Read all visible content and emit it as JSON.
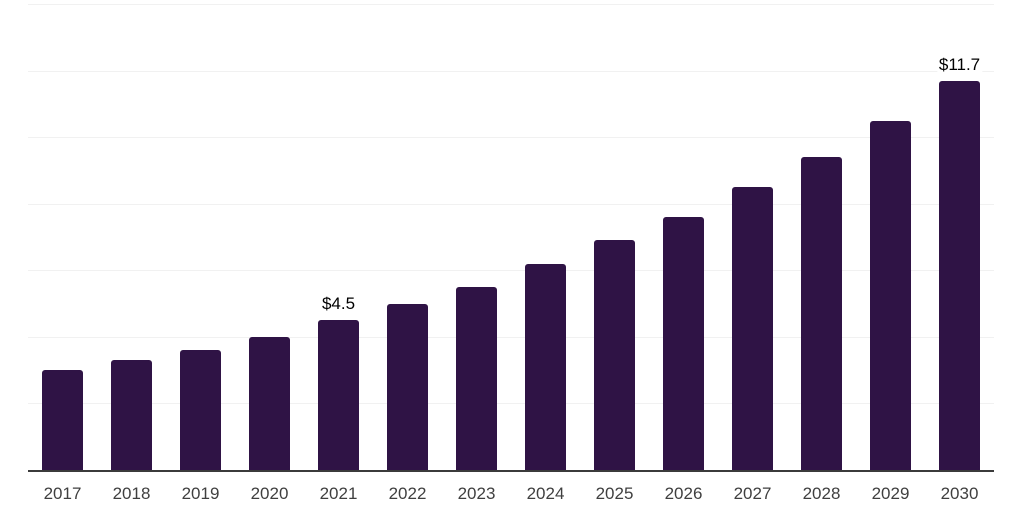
{
  "chart_data": {
    "type": "bar",
    "title": "",
    "xlabel": "",
    "ylabel": "",
    "categories": [
      "2017",
      "2018",
      "2019",
      "2020",
      "2021",
      "2022",
      "2023",
      "2024",
      "2025",
      "2026",
      "2027",
      "2028",
      "2029",
      "2030"
    ],
    "values": [
      3.0,
      3.3,
      3.6,
      4.0,
      4.5,
      5.0,
      5.5,
      6.2,
      6.9,
      7.6,
      8.5,
      9.4,
      10.5,
      11.7
    ],
    "data_labels": [
      "",
      "",
      "",
      "",
      "$4.5",
      "",
      "",
      "",
      "",
      "",
      "",
      "",
      "",
      "$11.7"
    ],
    "ylim": [
      0,
      14
    ],
    "gridline_step": 2,
    "gridline_count": 7,
    "grid": true,
    "legend": "none",
    "colors": {
      "bar_fill": "#2f1345",
      "axis_line": "#3b3b3b",
      "gridline": "#f1f1f1",
      "data_label": "#000000",
      "tick_label": "#3f3f3f",
      "background": "#ffffff"
    }
  }
}
